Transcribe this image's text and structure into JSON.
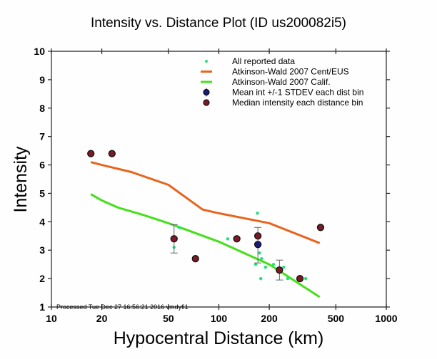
{
  "chart_data": {
    "type": "scatter",
    "title": "Intensity vs. Distance Plot (ID us200082i5)",
    "xlabel": "Hypocentral Distance (km)",
    "ylabel": "Intensity",
    "xscale": "log",
    "xlim": [
      10,
      1000
    ],
    "ylim": [
      1,
      10
    ],
    "xticks": [
      10,
      20,
      50,
      100,
      200,
      500,
      1000
    ],
    "xtick_labels": [
      "10",
      "20",
      "50",
      "100",
      "200",
      "500",
      "1000"
    ],
    "yticks": [
      1,
      2,
      3,
      4,
      5,
      6,
      7,
      8,
      9,
      10
    ],
    "ytick_labels": [
      "1",
      "2",
      "3",
      "4",
      "5",
      "6",
      "7",
      "8",
      "9",
      "10"
    ],
    "grid": false,
    "legend_position": "top-right",
    "footnote": "Processed Tue Dec 27 16:56:21 2016 vmdyfi1",
    "series": [
      {
        "name": "All reported data",
        "kind": "points",
        "color": "#22e07a",
        "points": [
          [
            22.5,
            6.4
          ],
          [
            58,
            3.8
          ],
          [
            54,
            3.1
          ],
          [
            113,
            3.4
          ],
          [
            170,
            4.3
          ],
          [
            175,
            2.9
          ],
          [
            180,
            2.7
          ],
          [
            166,
            2.5
          ],
          [
            190,
            2.4
          ],
          [
            178,
            2.0
          ],
          [
            212,
            2.5
          ],
          [
            244,
            2.4
          ],
          [
            258,
            2.0
          ],
          [
            330,
            2.0
          ]
        ]
      },
      {
        "name": "Atkinson-Wald 2007 Cent/EUS",
        "kind": "line",
        "color": "#e8641e",
        "points": [
          [
            17.2,
            6.1
          ],
          [
            20,
            6.0
          ],
          [
            30,
            5.75
          ],
          [
            50,
            5.3
          ],
          [
            80,
            4.43
          ],
          [
            100,
            4.3
          ],
          [
            200,
            3.95
          ],
          [
            400,
            3.25
          ]
        ]
      },
      {
        "name": "Atkinson-Wald 2007 Calif.",
        "kind": "line",
        "color": "#44e01a",
        "points": [
          [
            17.2,
            4.97
          ],
          [
            20,
            4.75
          ],
          [
            25,
            4.5
          ],
          [
            35,
            4.25
          ],
          [
            50,
            3.95
          ],
          [
            100,
            3.3
          ],
          [
            200,
            2.5
          ],
          [
            400,
            1.35
          ]
        ]
      },
      {
        "name": "Mean int +/-1 STDEV each dist bin",
        "kind": "errorbar",
        "color": "#1a1a7a",
        "points": [
          [
            54,
            3.4,
            2.9,
            3.9
          ],
          [
            171,
            3.2,
            2.55,
            3.8
          ],
          [
            230,
            2.3,
            1.95,
            2.65
          ]
        ]
      },
      {
        "name": "Median intensity each distance bin",
        "kind": "points",
        "color": "#7a1a24",
        "points": [
          [
            17.2,
            6.4
          ],
          [
            23,
            6.4
          ],
          [
            54,
            3.4
          ],
          [
            72.5,
            2.7
          ],
          [
            128,
            3.4
          ],
          [
            171,
            3.5
          ],
          [
            230,
            2.3
          ],
          [
            305,
            2.0
          ],
          [
            405,
            3.8
          ]
        ]
      }
    ]
  }
}
